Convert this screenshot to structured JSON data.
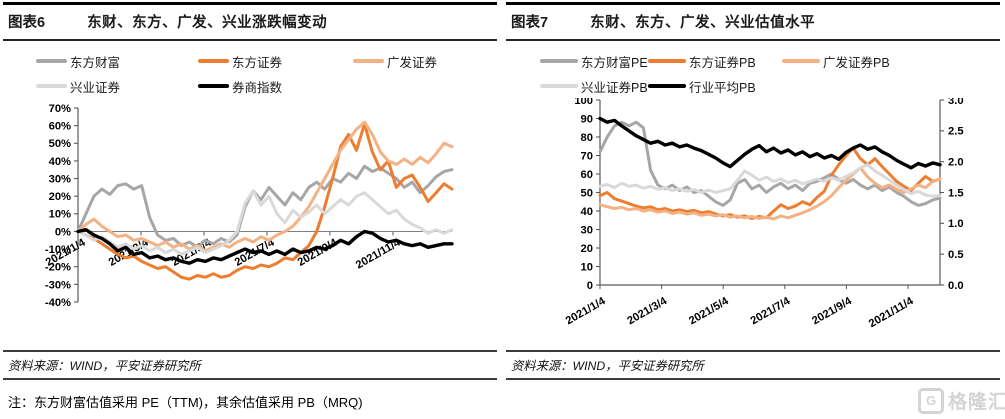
{
  "page": {
    "background": "#ffffff"
  },
  "watermark": {
    "icon": "G",
    "text": "格隆汇"
  },
  "panels": [
    {
      "figure_label": "图表6",
      "title": "东财、东方、广发、兴业涨跌幅变动",
      "source": "资料来源：WIND，平安证券研究所",
      "note": "注：东方财富估值采用 PE（TTM)，其余估值采用 PB（MRQ)"
    },
    {
      "figure_label": "图表7",
      "title": "东财、东方、广发、兴业估值水平",
      "source": "资料来源：WIND，平安证券研究所"
    }
  ],
  "colors": {
    "gray": "#a6a6a6",
    "orange": "#ed7d31",
    "peach": "#f4b183",
    "light_gray": "#d9d9d9",
    "black": "#000000",
    "axis": "#595959",
    "zero_line": "#808080"
  },
  "chart_data": [
    {
      "type": "line",
      "title": "东财、东方、广发、兴业涨跌幅变动",
      "x_tick_labels": [
        "2021/1/4",
        "2021/3/4",
        "2021/5/4",
        "2021/7/4",
        "2021/9/4",
        "2021/11/4"
      ],
      "y_axis": {
        "min": -40,
        "max": 70,
        "step": 10,
        "unit": "%"
      },
      "grid": false,
      "legend_position": "top",
      "series": [
        {
          "name": "东方财富",
          "color": "#a6a6a6",
          "unit": "%",
          "values": [
            0,
            10,
            20,
            24,
            21,
            26,
            27,
            24,
            26,
            8,
            -2,
            -5,
            -4,
            -8,
            -6,
            -9,
            -5,
            -7,
            -4,
            -6,
            -2,
            14,
            23,
            18,
            25,
            20,
            15,
            22,
            18,
            25,
            28,
            24,
            30,
            28,
            33,
            30,
            37,
            34,
            36,
            33,
            30,
            25,
            28,
            22,
            26,
            31,
            34,
            35
          ]
        },
        {
          "name": "东方证券",
          "color": "#ed7d31",
          "unit": "%",
          "values": [
            0,
            -2,
            -4,
            -7,
            -10,
            -13,
            -15,
            -14,
            -17,
            -19,
            -21,
            -20,
            -23,
            -26,
            -27,
            -25,
            -26,
            -24,
            -26,
            -25,
            -22,
            -20,
            -21,
            -19,
            -20,
            -18,
            -15,
            -16,
            -12,
            -8,
            0,
            14,
            30,
            48,
            55,
            46,
            61,
            45,
            35,
            40,
            25,
            30,
            32,
            25,
            17,
            22,
            27,
            24
          ]
        },
        {
          "name": "广发证券",
          "color": "#f4b183",
          "unit": "%",
          "values": [
            0,
            4,
            7,
            3,
            0,
            -3,
            -2,
            -5,
            -4,
            -6,
            -8,
            -6,
            -9,
            -7,
            -10,
            -8,
            -11,
            -9,
            -7,
            -9,
            -6,
            -4,
            -6,
            -3,
            -5,
            -2,
            0,
            3,
            8,
            14,
            22,
            30,
            38,
            46,
            52,
            58,
            62,
            55,
            45,
            40,
            38,
            41,
            38,
            42,
            39,
            44,
            50,
            48
          ]
        },
        {
          "name": "兴业证券",
          "color": "#d9d9d9",
          "unit": "%",
          "values": [
            0,
            -2,
            -5,
            -3,
            -6,
            -9,
            -7,
            -10,
            -8,
            -11,
            -9,
            -12,
            -10,
            -13,
            -11,
            -9,
            -12,
            -10,
            -8,
            -5,
            0,
            16,
            23,
            15,
            20,
            10,
            5,
            12,
            8,
            11,
            15,
            10,
            14,
            18,
            15,
            20,
            22,
            18,
            14,
            10,
            12,
            7,
            4,
            2,
            -1,
            1,
            -1,
            1
          ]
        },
        {
          "name": "券商指数",
          "color": "#000000",
          "unit": "%",
          "values": [
            0,
            1,
            -2,
            -4,
            -7,
            -11,
            -9,
            -13,
            -12,
            -15,
            -14,
            -16,
            -15,
            -17,
            -18,
            -16,
            -17,
            -15,
            -16,
            -14,
            -12,
            -10,
            -12,
            -11,
            -13,
            -11,
            -13,
            -10,
            -12,
            -11,
            -9,
            -10,
            -8,
            -5,
            -7,
            -3,
            0,
            -1,
            -4,
            -6,
            -5,
            -7,
            -8,
            -7,
            -9,
            -8,
            -7,
            -7
          ]
        }
      ]
    },
    {
      "type": "line",
      "title": "东财、东方、广发、兴业估值水平",
      "x_tick_labels": [
        "2021/1/4",
        "2021/3/4",
        "2021/5/4",
        "2021/7/4",
        "2021/9/4",
        "2021/11/4"
      ],
      "y_axis_left": {
        "min": 0,
        "max": 100,
        "step": 10
      },
      "y_axis_right": {
        "min": 0.0,
        "max": 3.0,
        "step": 0.5,
        "decimals": 1
      },
      "grid": false,
      "legend_position": "top",
      "series": [
        {
          "name": "东方财富PE",
          "color": "#a6a6a6",
          "axis": "left",
          "values": [
            72,
            80,
            86,
            88,
            86,
            88,
            85,
            62,
            54,
            52,
            54,
            51,
            53,
            50,
            51,
            48,
            45,
            43,
            46,
            55,
            57,
            52,
            54,
            50,
            53,
            55,
            52,
            54,
            51,
            55,
            56,
            58,
            60,
            57,
            55,
            57,
            54,
            52,
            54,
            51,
            53,
            50,
            48,
            45,
            43,
            44,
            46,
            47
          ]
        },
        {
          "name": "东方证券PB",
          "color": "#ed7d31",
          "axis": "right",
          "values": [
            1.45,
            1.5,
            1.4,
            1.36,
            1.32,
            1.28,
            1.25,
            1.27,
            1.22,
            1.24,
            1.2,
            1.22,
            1.19,
            1.21,
            1.17,
            1.19,
            1.15,
            1.12,
            1.14,
            1.1,
            1.12,
            1.08,
            1.11,
            1.09,
            1.2,
            1.3,
            1.24,
            1.28,
            1.35,
            1.3,
            1.42,
            1.52,
            1.78,
            1.95,
            2.1,
            2.22,
            2.05,
            1.95,
            2.05,
            1.92,
            1.8,
            1.68,
            1.6,
            1.53,
            1.65,
            1.76,
            1.68,
            1.72
          ]
        },
        {
          "name": "广发证券PB",
          "color": "#f4b183",
          "axis": "right",
          "values": [
            1.3,
            1.27,
            1.24,
            1.26,
            1.22,
            1.24,
            1.2,
            1.22,
            1.18,
            1.2,
            1.16,
            1.18,
            1.15,
            1.17,
            1.13,
            1.15,
            1.12,
            1.14,
            1.1,
            1.12,
            1.09,
            1.11,
            1.08,
            1.1,
            1.07,
            1.12,
            1.09,
            1.13,
            1.17,
            1.22,
            1.28,
            1.35,
            1.45,
            1.58,
            1.7,
            1.8,
            1.9,
            1.75,
            1.65,
            1.58,
            1.62,
            1.55,
            1.5,
            1.56,
            1.62,
            1.58,
            1.68,
            1.72
          ]
        },
        {
          "name": "兴业证券PB",
          "color": "#d9d9d9",
          "axis": "right",
          "values": [
            1.6,
            1.63,
            1.58,
            1.65,
            1.6,
            1.62,
            1.57,
            1.6,
            1.55,
            1.58,
            1.53,
            1.56,
            1.52,
            1.55,
            1.5,
            1.54,
            1.5,
            1.53,
            1.56,
            1.7,
            1.85,
            1.78,
            1.7,
            1.75,
            1.68,
            1.72,
            1.66,
            1.7,
            1.64,
            1.68,
            1.72,
            1.68,
            1.74,
            1.7,
            1.76,
            1.82,
            1.9,
            1.95,
            1.85,
            1.78,
            1.7,
            1.62,
            1.55,
            1.48,
            1.52,
            1.46,
            1.44,
            1.45
          ]
        },
        {
          "name": "行业平均PB",
          "color": "#000000",
          "axis": "right",
          "values": [
            2.7,
            2.64,
            2.67,
            2.58,
            2.5,
            2.42,
            2.36,
            2.3,
            2.33,
            2.27,
            2.3,
            2.24,
            2.27,
            2.22,
            2.18,
            2.12,
            2.06,
            1.98,
            1.92,
            2.02,
            2.12,
            2.2,
            2.26,
            2.16,
            2.22,
            2.14,
            2.19,
            2.11,
            2.16,
            2.08,
            2.13,
            2.06,
            2.1,
            2.04,
            2.15,
            2.22,
            2.27,
            2.2,
            2.24,
            2.16,
            2.1,
            2.02,
            1.96,
            1.9,
            1.97,
            1.93,
            1.98,
            1.95
          ]
        }
      ]
    }
  ]
}
